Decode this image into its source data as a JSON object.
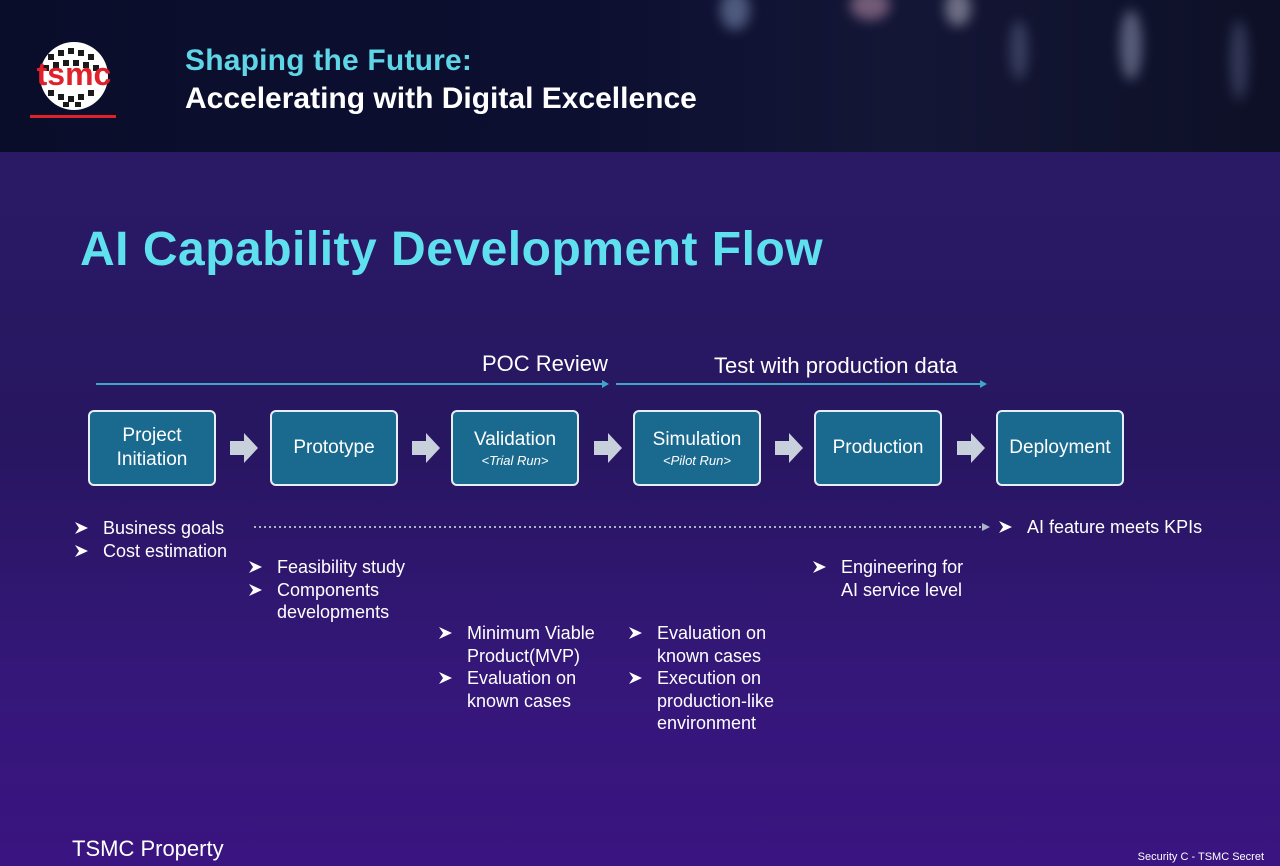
{
  "header": {
    "logo_text": "tsmc",
    "subtitle": "Shaping the Future:",
    "title": "Accelerating with Digital Excellence"
  },
  "slide": {
    "title": "AI Capability Development Flow",
    "reviews": [
      {
        "label": "POC Review"
      },
      {
        "label": "Test with production data"
      }
    ],
    "stages": [
      {
        "label": "Project\nInitiation",
        "sub": ""
      },
      {
        "label": "Prototype",
        "sub": ""
      },
      {
        "label": "Validation",
        "sub": "<Trial Run>"
      },
      {
        "label": "Simulation",
        "sub": "<Pilot Run>"
      },
      {
        "label": "Production",
        "sub": ""
      },
      {
        "label": "Deployment",
        "sub": ""
      }
    ],
    "bullets": {
      "initiation": [
        "Business goals",
        "Cost estimation"
      ],
      "prototype": [
        "Feasibility study",
        "Components\ndevelopments"
      ],
      "validation": [
        "Minimum Viable\nProduct(MVP)",
        "Evaluation on\nknown cases"
      ],
      "simulation": [
        "Evaluation on\nknown cases",
        "Execution on\nproduction-like\nenvironment"
      ],
      "production": [
        "Engineering for\nAI service level"
      ],
      "deployment": [
        "AI feature meets KPIs"
      ]
    }
  },
  "footer": {
    "left": "TSMC Property",
    "right": "Security C - TSMC Secret"
  },
  "colors": {
    "accent": "#5fe0ee",
    "stage_fill": "#1a6a90",
    "background": "#2a1a66"
  }
}
